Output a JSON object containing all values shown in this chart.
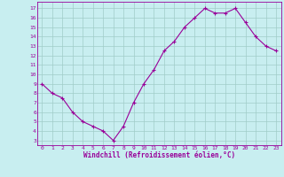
{
  "x": [
    0,
    1,
    2,
    3,
    4,
    5,
    6,
    7,
    8,
    9,
    10,
    11,
    12,
    13,
    14,
    15,
    16,
    17,
    18,
    19,
    20,
    21,
    22,
    23
  ],
  "y": [
    9,
    8,
    7.5,
    6,
    5,
    4.5,
    4,
    3,
    4.5,
    7,
    9,
    10.5,
    12.5,
    13.5,
    15,
    16,
    17,
    16.5,
    16.5,
    17,
    15.5,
    14,
    13,
    12.5
  ],
  "line_color": "#990099",
  "marker": "+",
  "marker_size": 3,
  "bg_color": "#c8eef0",
  "grid_color": "#a0ccc8",
  "xlabel": "Windchill (Refroidissement éolien,°C)",
  "xlabel_color": "#990099",
  "tick_color": "#990099",
  "ylabel_ticks": [
    3,
    4,
    5,
    6,
    7,
    8,
    9,
    10,
    11,
    12,
    13,
    14,
    15,
    16,
    17
  ],
  "ylim": [
    2.5,
    17.7
  ],
  "xlim": [
    -0.5,
    23.5
  ],
  "xticks": [
    0,
    1,
    2,
    3,
    4,
    5,
    6,
    7,
    8,
    9,
    10,
    11,
    12,
    13,
    14,
    15,
    16,
    17,
    18,
    19,
    20,
    21,
    22,
    23
  ]
}
